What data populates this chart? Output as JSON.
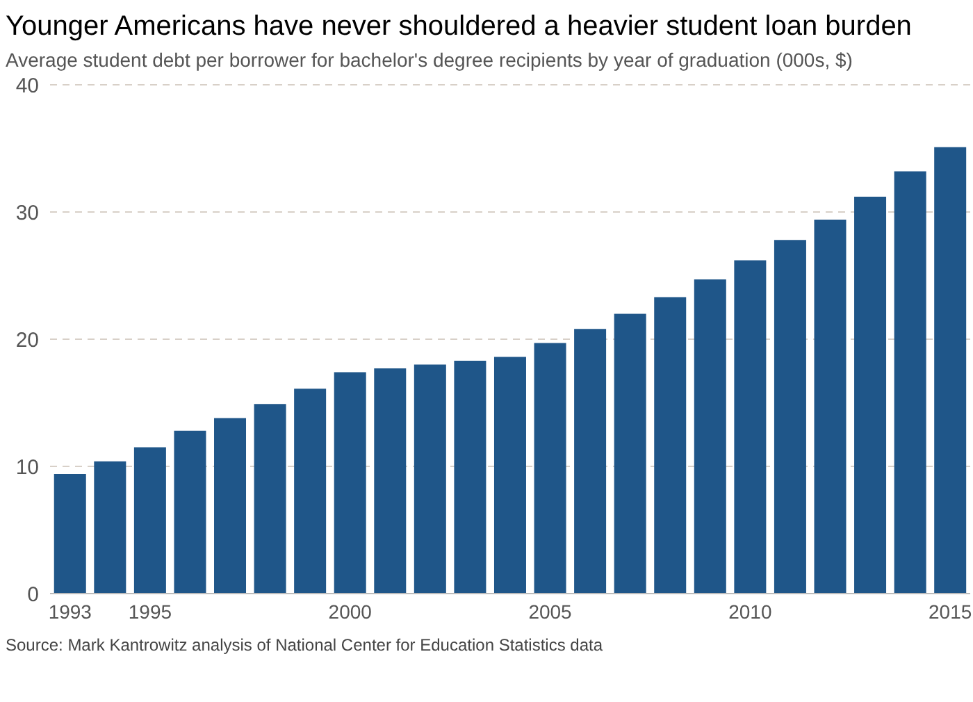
{
  "chart_data": {
    "type": "bar",
    "title": "Younger Americans have never shouldered a heavier student loan burden",
    "subtitle": "Average student debt per borrower for bachelor's degree recipients by year of graduation (000s, $)",
    "categories": [
      "1993",
      null,
      "1995",
      null,
      null,
      null,
      null,
      "2000",
      null,
      null,
      null,
      null,
      "2005",
      null,
      null,
      null,
      null,
      "2010",
      null,
      null,
      null,
      null,
      "2015"
    ],
    "values": [
      9.4,
      10.4,
      11.5,
      12.8,
      13.8,
      14.9,
      16.1,
      17.4,
      17.7,
      18.0,
      18.3,
      18.6,
      19.7,
      20.8,
      22.0,
      23.3,
      24.7,
      26.2,
      27.8,
      29.4,
      31.2,
      33.2,
      35.1
    ],
    "color": "#1f5689",
    "ylim": [
      0,
      40
    ],
    "yticks": [
      0,
      10,
      20,
      30,
      40
    ],
    "grid": "y",
    "legend": false,
    "annotations": [
      "Source: Mark Kantrowitz analysis of National Center for Education Statistics data"
    ]
  }
}
